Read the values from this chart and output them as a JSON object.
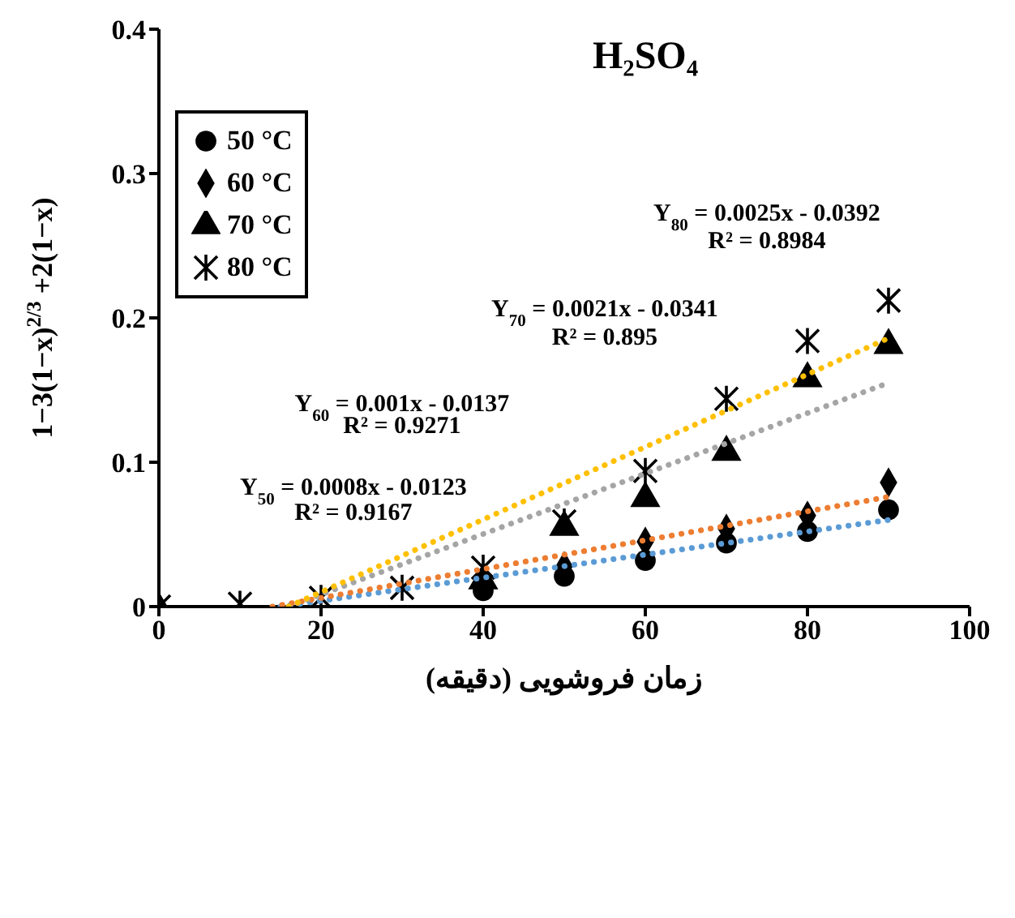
{
  "chart_data": {
    "type": "scatter",
    "title": "H₂SO₄",
    "xlabel": "زمان فروشویی (دقیقه)",
    "ylabel": "1−3(1−x)$^{2/3}$ +2(1−x)",
    "x": [
      0,
      10,
      20,
      30,
      40,
      50,
      60,
      70,
      80,
      90
    ],
    "xlim": [
      0,
      100
    ],
    "xticks": [
      0,
      20,
      40,
      60,
      80,
      100
    ],
    "ylim": [
      0,
      0.4
    ],
    "yticks": [
      0,
      0.1,
      0.2,
      0.3,
      0.4
    ],
    "legend": "top left",
    "series": [
      {
        "name": "50 °C",
        "marker": "circle",
        "color": "#000000",
        "values": [
          null,
          null,
          null,
          null,
          0.011,
          0.021,
          0.032,
          0.044,
          0.052,
          0.067
        ]
      },
      {
        "name": "60 °C",
        "marker": "diamond",
        "color": "#000000",
        "values": [
          0,
          null,
          null,
          null,
          null,
          0.028,
          0.045,
          0.054,
          0.063,
          0.086
        ]
      },
      {
        "name": "70 °C",
        "marker": "triangle",
        "color": "#000000",
        "values": [
          null,
          null,
          null,
          null,
          0.018,
          0.055,
          0.075,
          0.107,
          0.158,
          0.181
        ]
      },
      {
        "name": "80 °C",
        "marker": "cross",
        "color": "#000000",
        "values": [
          0,
          0.002,
          0.006,
          0.013,
          0.027,
          0.059,
          0.094,
          0.144,
          0.184,
          0.212
        ]
      },
      {
        "type": "line",
        "line_style": "dotted",
        "marker": "none",
        "color": "#5b9bd5",
        "x": [
          15,
          90
        ],
        "values": [
          0,
          0.06
        ]
      },
      {
        "type": "line",
        "line_style": "dotted",
        "marker": "none",
        "color": "#ed7d31",
        "x": [
          14,
          90
        ],
        "values": [
          0,
          0.076
        ]
      },
      {
        "type": "line",
        "line_style": "dotted",
        "marker": "none",
        "color": "#a5a5a5",
        "x": [
          16,
          90
        ],
        "values": [
          0,
          0.155
        ]
      },
      {
        "type": "line",
        "line_style": "dotted",
        "marker": "none",
        "color": "#ffc000",
        "x": [
          16,
          90
        ],
        "values": [
          0,
          0.186
        ]
      }
    ],
    "annotations": [
      "Y$_{80}$ = 0.0025x - 0.0392",
      "R² = 0.8984",
      "Y$_{70}$ = 0.0021x - 0.0341",
      "R² = 0.895",
      "Y$_{60}$ = 0.001x - 0.0137",
      "R² = 0.9271",
      "Y$_{50}$ = 0.0008x - 0.0123",
      "R² = 0.9167"
    ]
  }
}
